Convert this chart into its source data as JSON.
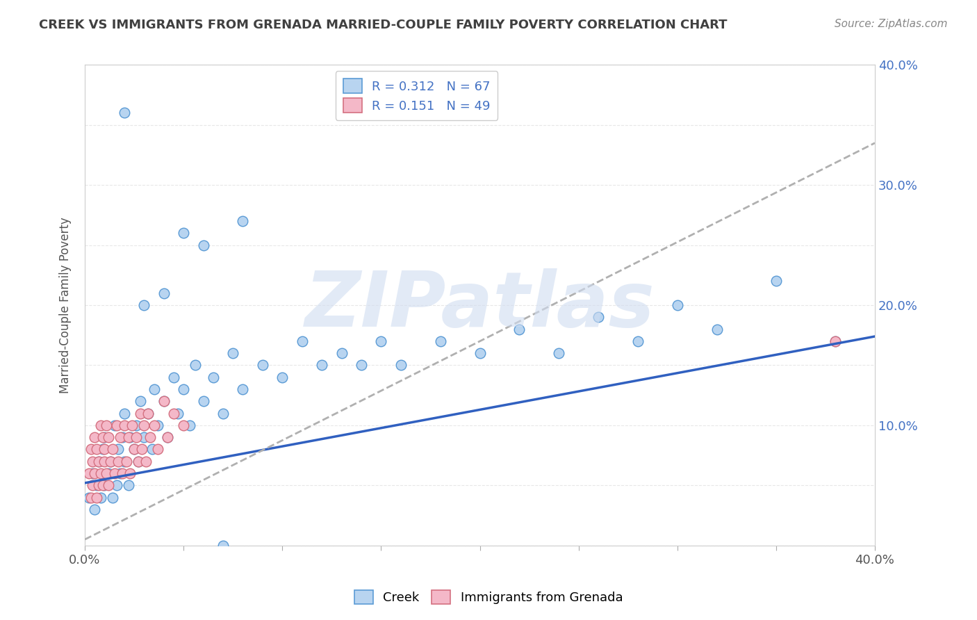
{
  "title": "CREEK VS IMMIGRANTS FROM GRENADA MARRIED-COUPLE FAMILY POVERTY CORRELATION CHART",
  "source": "Source: ZipAtlas.com",
  "ylabel": "Married-Couple Family Poverty",
  "xlim": [
    0.0,
    0.4
  ],
  "ylim": [
    0.0,
    0.4
  ],
  "xticks": [
    0.0,
    0.05,
    0.1,
    0.15,
    0.2,
    0.25,
    0.3,
    0.35,
    0.4
  ],
  "yticks": [
    0.0,
    0.1,
    0.2,
    0.3,
    0.4
  ],
  "creek_color": "#b8d4f0",
  "creek_edge": "#5b9bd5",
  "grenada_color": "#f4b8c8",
  "grenada_edge": "#d47080",
  "creek_R": 0.312,
  "creek_N": 67,
  "grenada_R": 0.151,
  "grenada_N": 49,
  "creek_line_color": "#3060c0",
  "grenada_line_color": "#b0b0b0",
  "legend_text_color": "#4472c4",
  "watermark": "ZIPatlas",
  "background_color": "#ffffff",
  "grid_color": "#e8e8e8",
  "title_color": "#404040",
  "creek_line_x0": 0.0,
  "creek_line_y0": 0.052,
  "creek_line_x1": 0.4,
  "creek_line_y1": 0.174,
  "grenada_line_x0": 0.0,
  "grenada_line_y0": 0.005,
  "grenada_line_x1": 0.4,
  "grenada_line_y1": 0.335,
  "creek_x": [
    0.002,
    0.004,
    0.005,
    0.006,
    0.007,
    0.008,
    0.009,
    0.01,
    0.01,
    0.012,
    0.013,
    0.014,
    0.015,
    0.016,
    0.017,
    0.018,
    0.019,
    0.02,
    0.02,
    0.022,
    0.023,
    0.025,
    0.026,
    0.027,
    0.028,
    0.03,
    0.032,
    0.034,
    0.035,
    0.037,
    0.04,
    0.042,
    0.045,
    0.047,
    0.05,
    0.053,
    0.056,
    0.06,
    0.065,
    0.07,
    0.075,
    0.08,
    0.09,
    0.1,
    0.11,
    0.12,
    0.13,
    0.14,
    0.15,
    0.16,
    0.18,
    0.2,
    0.22,
    0.24,
    0.26,
    0.28,
    0.3,
    0.32,
    0.35,
    0.38,
    0.04,
    0.03,
    0.02,
    0.08,
    0.06,
    0.05,
    0.07
  ],
  "creek_y": [
    0.04,
    0.06,
    0.03,
    0.05,
    0.07,
    0.04,
    0.08,
    0.05,
    0.09,
    0.06,
    0.07,
    0.04,
    0.1,
    0.05,
    0.08,
    0.06,
    0.09,
    0.07,
    0.11,
    0.05,
    0.09,
    0.08,
    0.1,
    0.07,
    0.12,
    0.09,
    0.11,
    0.08,
    0.13,
    0.1,
    0.12,
    0.09,
    0.14,
    0.11,
    0.13,
    0.1,
    0.15,
    0.12,
    0.14,
    0.11,
    0.16,
    0.13,
    0.15,
    0.14,
    0.17,
    0.15,
    0.16,
    0.15,
    0.17,
    0.15,
    0.17,
    0.16,
    0.18,
    0.16,
    0.19,
    0.17,
    0.2,
    0.18,
    0.22,
    0.17,
    0.21,
    0.2,
    0.36,
    0.27,
    0.25,
    0.26,
    0.0
  ],
  "grenada_x": [
    0.002,
    0.003,
    0.003,
    0.004,
    0.004,
    0.005,
    0.005,
    0.006,
    0.006,
    0.007,
    0.007,
    0.008,
    0.008,
    0.009,
    0.009,
    0.01,
    0.01,
    0.011,
    0.011,
    0.012,
    0.012,
    0.013,
    0.014,
    0.015,
    0.016,
    0.017,
    0.018,
    0.019,
    0.02,
    0.021,
    0.022,
    0.023,
    0.024,
    0.025,
    0.026,
    0.027,
    0.028,
    0.029,
    0.03,
    0.031,
    0.032,
    0.033,
    0.035,
    0.037,
    0.04,
    0.042,
    0.045,
    0.05,
    0.38
  ],
  "grenada_y": [
    0.06,
    0.04,
    0.08,
    0.05,
    0.07,
    0.06,
    0.09,
    0.04,
    0.08,
    0.05,
    0.07,
    0.06,
    0.1,
    0.05,
    0.09,
    0.07,
    0.08,
    0.06,
    0.1,
    0.05,
    0.09,
    0.07,
    0.08,
    0.06,
    0.1,
    0.07,
    0.09,
    0.06,
    0.1,
    0.07,
    0.09,
    0.06,
    0.1,
    0.08,
    0.09,
    0.07,
    0.11,
    0.08,
    0.1,
    0.07,
    0.11,
    0.09,
    0.1,
    0.08,
    0.12,
    0.09,
    0.11,
    0.1,
    0.17
  ]
}
